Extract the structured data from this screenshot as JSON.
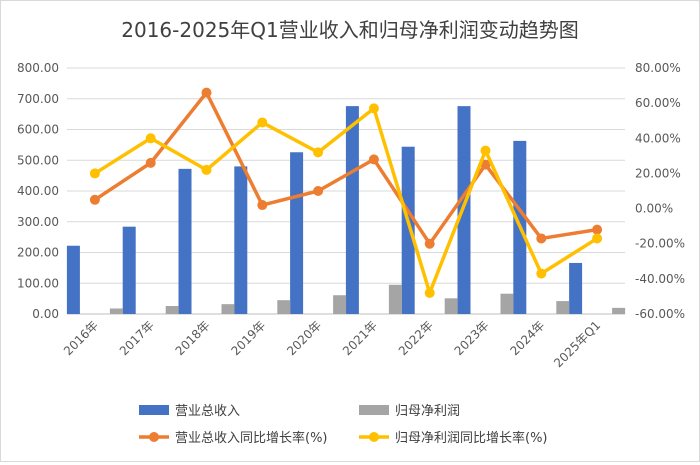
{
  "chart_data": {
    "type": "bar",
    "title": "2016-2025年Q1营业收入和归母净利润变动趋势图",
    "categories": [
      "2016年",
      "2017年",
      "2018年",
      "2019年",
      "2020年",
      "2021年",
      "2022年",
      "2023年",
      "2024年",
      "2025年Q1"
    ],
    "y_left": {
      "range": [
        0,
        800
      ],
      "ticks": [
        "0.00",
        "100.00",
        "200.00",
        "300.00",
        "400.00",
        "500.00",
        "600.00",
        "700.00",
        "800.00"
      ]
    },
    "y_right": {
      "range": [
        -60,
        80
      ],
      "ticks": [
        "-60.00%",
        "-40.00%",
        "-20.00%",
        "0.00%",
        "20.00%",
        "40.00%",
        "60.00%",
        "80.00%"
      ]
    },
    "grid": true,
    "legend_position": "bottom",
    "series": [
      {
        "name": "营业总收入",
        "type": "bar",
        "axis": "left",
        "color": "#4472C4",
        "values": [
          222,
          284,
          472,
          480,
          526,
          676,
          544,
          676,
          563,
          166
        ]
      },
      {
        "name": "归母净利润",
        "type": "bar",
        "axis": "left",
        "color": "#A5A5A5",
        "values": [
          18,
          26,
          32,
          45,
          61,
          95,
          51,
          66,
          42,
          20
        ]
      },
      {
        "name": "营业总收入同比增长率(%)",
        "type": "line",
        "axis": "right",
        "color": "#ED7D31",
        "values": [
          5,
          26,
          66,
          2,
          10,
          28,
          -20,
          25,
          -17,
          -12
        ]
      },
      {
        "name": "归母净利润同比增长率(%)",
        "type": "line",
        "axis": "right",
        "color": "#FFC000",
        "values": [
          20,
          40,
          22,
          49,
          32,
          57,
          -48,
          33,
          -37,
          -17
        ]
      }
    ]
  }
}
